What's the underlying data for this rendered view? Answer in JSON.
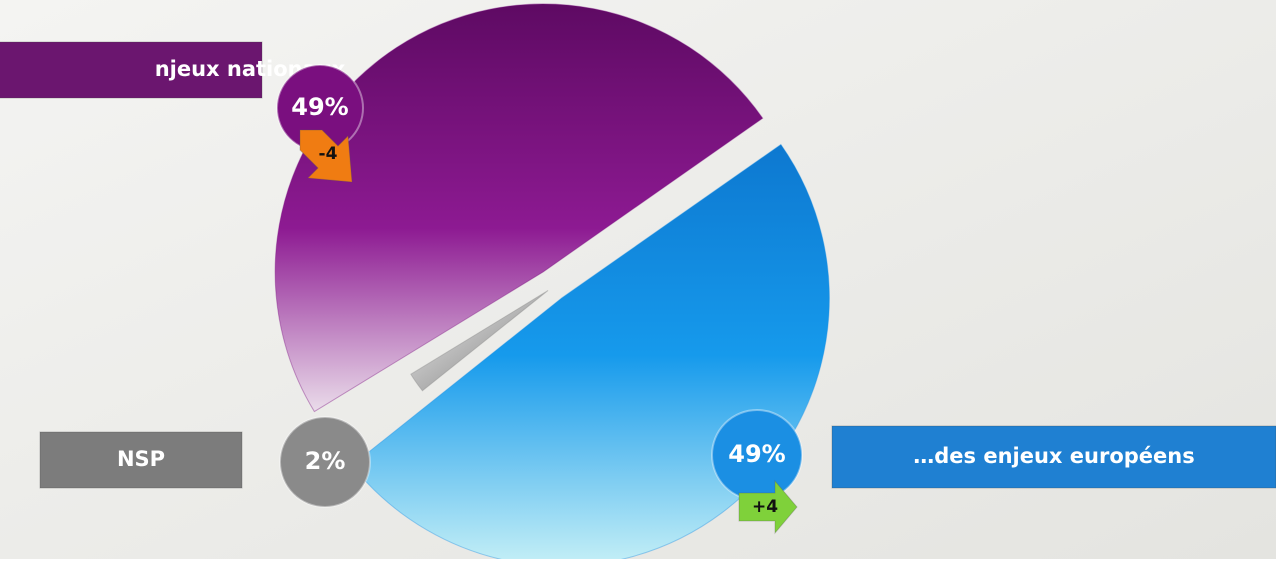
{
  "chart_data": {
    "type": "pie",
    "categories": [
      "njeux nationaux",
      "NSP",
      "…des enjeux européens"
    ],
    "values": [
      49,
      2,
      49
    ],
    "value_labels": [
      "49%",
      "2%",
      "49%"
    ],
    "colors": [
      "#7a0f7f",
      "#8a8a8a",
      "#1b8fe3"
    ],
    "changes": [
      -4,
      null,
      4
    ],
    "change_labels": [
      "-4",
      null,
      "+4"
    ]
  }
}
